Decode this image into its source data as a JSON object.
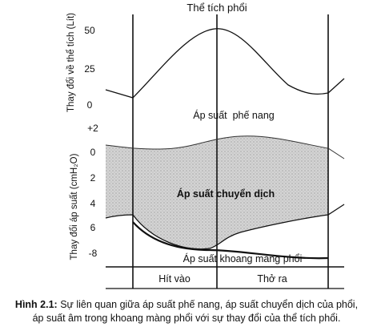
{
  "title": "Thể tích phổi",
  "y_axis_volume": {
    "label": "Thay đổi về thể tích (Lít)",
    "ticks": [
      "50",
      "25",
      "0"
    ]
  },
  "y_axis_pressure": {
    "label": "Thay đổi áp suất (cmH₂O)",
    "ticks": [
      "+2",
      "0",
      "2",
      "4",
      "6",
      "-8"
    ]
  },
  "curves": {
    "alveolar": "Áp suất  phế nang",
    "transpulmonary": "Áp suất chuyển dịch",
    "pleural": "Áp suất khoang màng phổi"
  },
  "phases": {
    "inspiration": "Hít vào",
    "expiration": "Thở ra"
  },
  "caption": {
    "label": "Hình 2.1:",
    "line1": " Sự liên quan giữa áp suất phế nang, áp suất chuyển dịch của phổi,",
    "line2": "áp  suất âm trong khoang màng phổi với sự thay đổi của thể tích phổi."
  },
  "colors": {
    "ink": "#111111",
    "fill": "#d2d2d2"
  }
}
